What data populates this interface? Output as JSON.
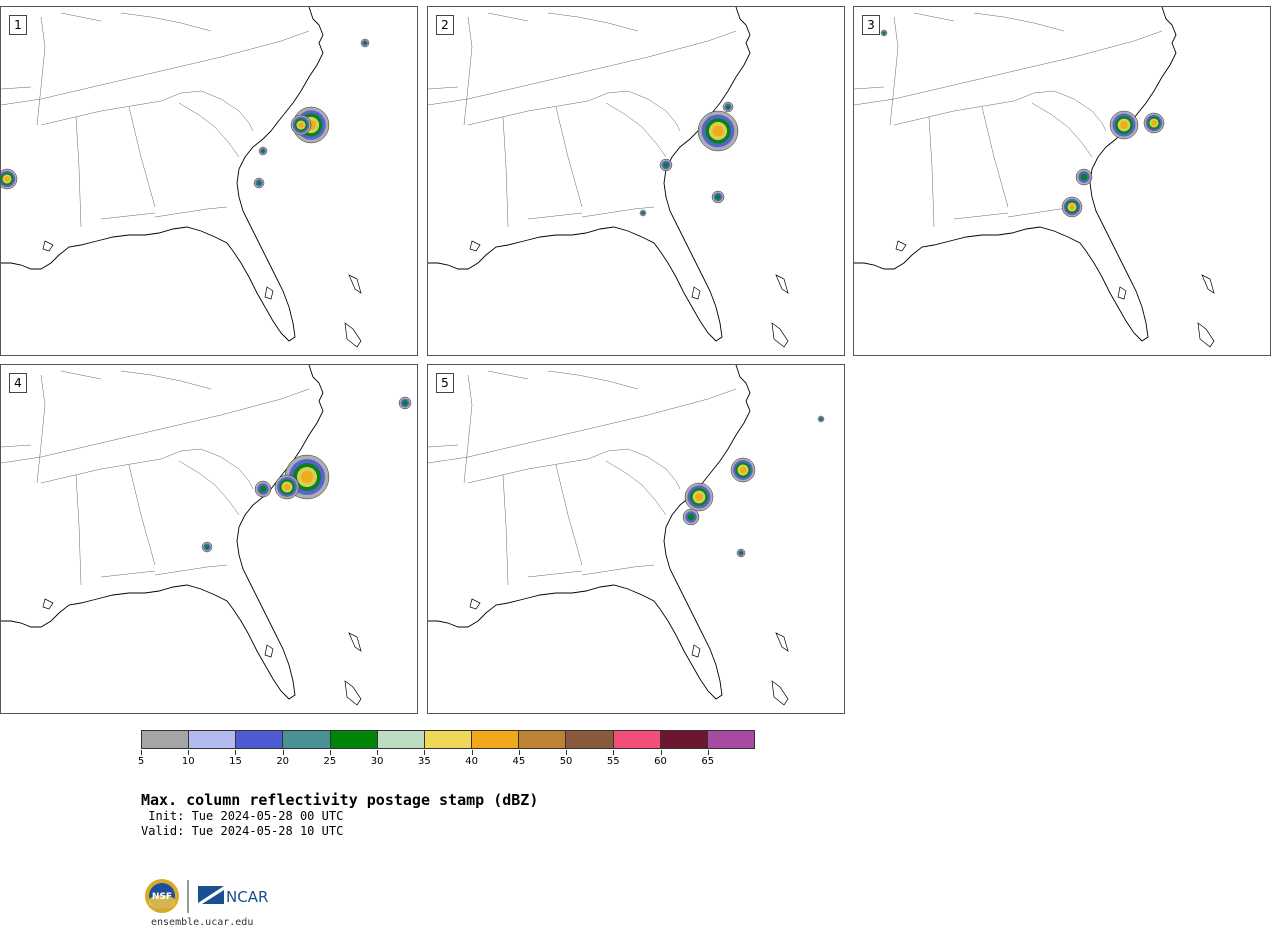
{
  "panels": [
    {
      "label": "1"
    },
    {
      "label": "2"
    },
    {
      "label": "3"
    },
    {
      "label": "4"
    },
    {
      "label": "5"
    }
  ],
  "colorbar": {
    "unit": "dBZ",
    "colors": [
      "#a5a5a5",
      "#b3bbee",
      "#4f5bd5",
      "#4a9193",
      "#00850b",
      "#bddbc0",
      "#efd75a",
      "#f0a91a",
      "#bd8233",
      "#8a5a3f",
      "#f24e77",
      "#6d1630",
      "#a64aa2"
    ],
    "ticks": [
      "5",
      "10",
      "15",
      "20",
      "25",
      "30",
      "35",
      "40",
      "45",
      "50",
      "55",
      "60",
      "65"
    ]
  },
  "title": "Max. column reflectivity postage stamp (dBZ)",
  "init_line": " Init: Tue 2024-05-28 00 UTC",
  "valid_line": "Valid: Tue 2024-05-28 10 UTC",
  "logos": {
    "nsf_text": "NSF",
    "ncar_text": "NCAR"
  },
  "footer_url": "ensemble.ucar.edu"
}
